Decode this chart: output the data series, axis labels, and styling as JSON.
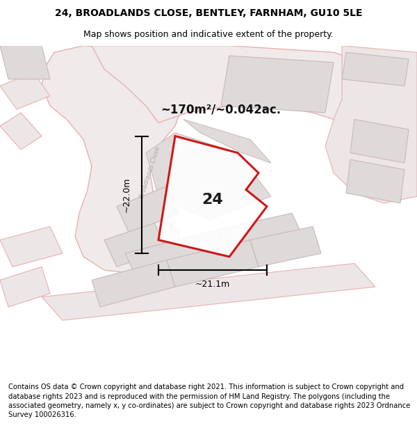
{
  "title_line1": "24, BROADLANDS CLOSE, BENTLEY, FARNHAM, GU10 5LE",
  "title_line2": "Map shows position and indicative extent of the property.",
  "footer": "Contains OS data © Crown copyright and database right 2021. This information is subject to Crown copyright and database rights 2023 and is reproduced with the permission of HM Land Registry. The polygons (including the associated geometry, namely x, y co-ordinates) are subject to Crown copyright and database rights 2023 Ordnance Survey 100026316.",
  "area_label": "~170m²/~0.042ac.",
  "number_label": "24",
  "dim_horizontal": "~21.1m",
  "dim_vertical": "~22.0m",
  "street_label": "Broadlands Close",
  "map_bg": "#f7f3f3",
  "plot_color": "#cc0000",
  "road_outline": "#e8b0b0",
  "road_fill": "#efe8e8",
  "building_fill": "#dedada",
  "building_outline": "#c8b8b8",
  "title_fontsize": 10,
  "subtitle_fontsize": 9,
  "footer_fontsize": 7.2,
  "prop_pts_x": [
    42,
    47,
    57,
    62,
    59,
    64,
    55,
    38
  ],
  "prop_pts_y": [
    73,
    76,
    68,
    62,
    57,
    52,
    38,
    42
  ]
}
